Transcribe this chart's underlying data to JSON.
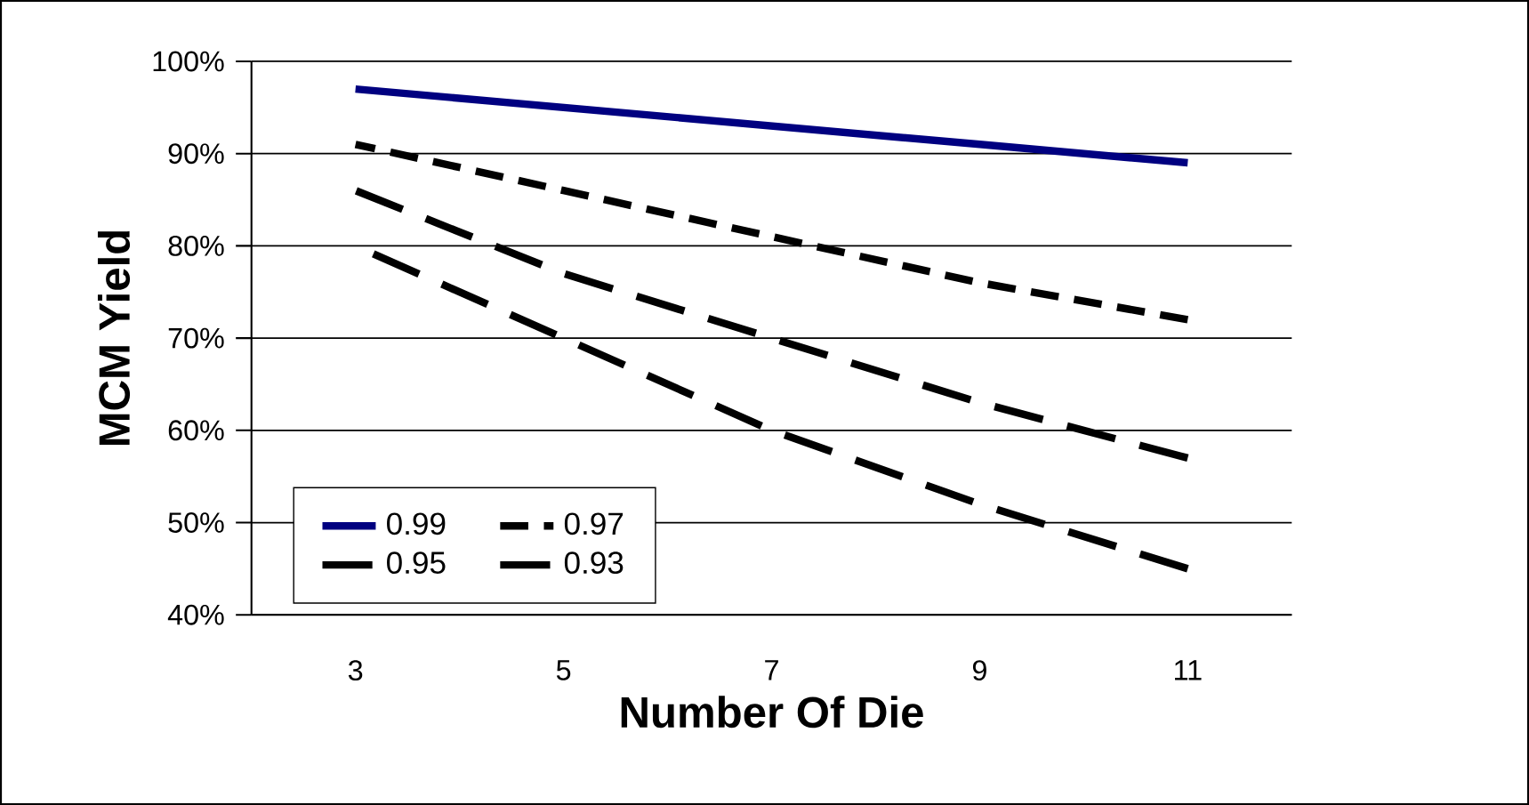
{
  "chart_data": {
    "type": "line",
    "xlabel": "Number Of Die",
    "ylabel": "MCM Yield",
    "categories": [
      "3",
      "5",
      "7",
      "9",
      "11"
    ],
    "series": [
      {
        "name": "0.99",
        "color": "#000080",
        "line_style": "solid",
        "values": [
          97,
          95,
          93,
          91,
          89
        ]
      },
      {
        "name": "0.97",
        "color": "#000000",
        "line_style": "dotted",
        "values": [
          91,
          86,
          81,
          76,
          72
        ]
      },
      {
        "name": "0.95",
        "color": "#000000",
        "line_style": "dashed",
        "values": [
          86,
          77,
          70,
          63,
          57
        ]
      },
      {
        "name": "0.93",
        "color": "#000000",
        "line_style": "dashed",
        "values": [
          80,
          70,
          60,
          52,
          45
        ]
      }
    ],
    "ylim": [
      40,
      100
    ],
    "yticks": [
      {
        "value": 40,
        "label": "40%"
      },
      {
        "value": 50,
        "label": "50%"
      },
      {
        "value": 60,
        "label": "60%"
      },
      {
        "value": 70,
        "label": "70%"
      },
      {
        "value": 80,
        "label": "80%"
      },
      {
        "value": 90,
        "label": "90%"
      },
      {
        "value": 100,
        "label": "100%"
      }
    ],
    "grid": "y",
    "legend": "bottom left",
    "marker": "none"
  }
}
